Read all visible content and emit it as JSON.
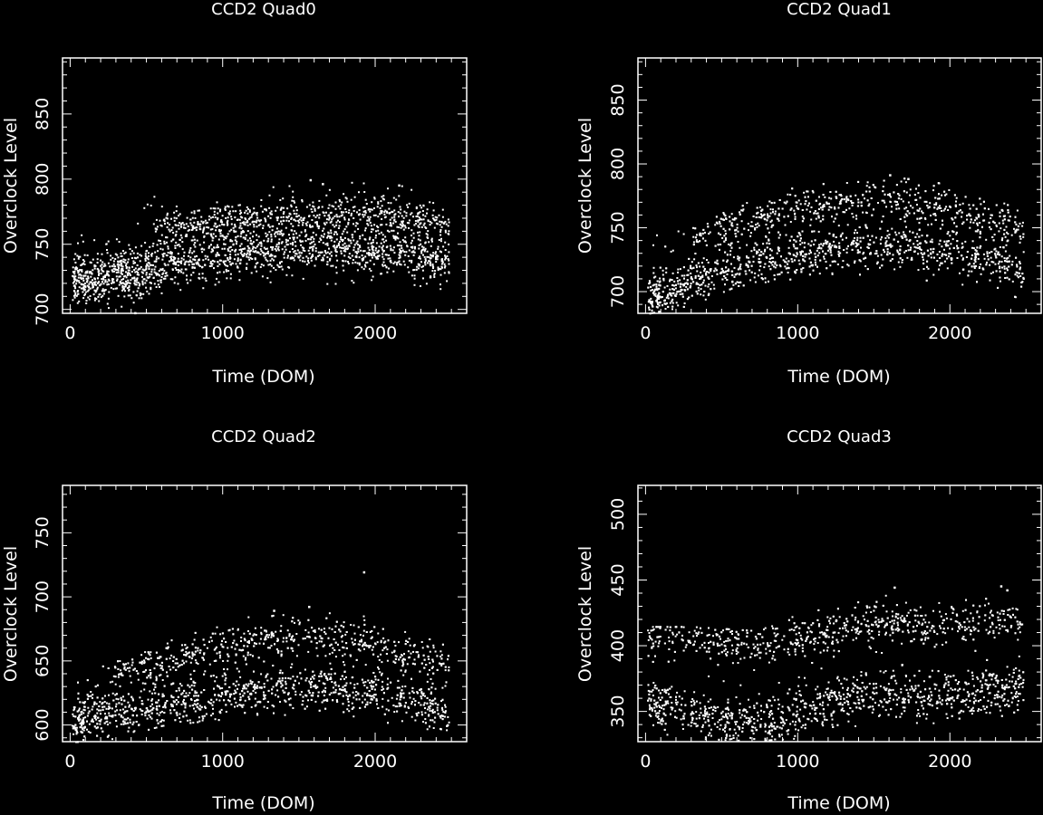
{
  "colors": {
    "background": "#000000",
    "foreground": "#ffffff"
  },
  "chart_data": [
    {
      "type": "scatter",
      "title": "CCD2 Quad0",
      "xlabel": "Time (DOM)",
      "ylabel": "Overclock Level",
      "xlim": [
        -50,
        2600
      ],
      "ylim": [
        697,
        893
      ],
      "xticks": [
        0,
        1000,
        2000
      ],
      "yticks": [
        700,
        750,
        800,
        850
      ],
      "grid": false,
      "series": [
        {
          "trend": [
            [
              0,
              728
            ],
            [
              150,
              722
            ],
            [
              300,
              730
            ],
            [
              450,
              725
            ],
            [
              600,
              735
            ],
            [
              800,
              740
            ],
            [
              1000,
              743
            ],
            [
              1200,
              746
            ],
            [
              1400,
              747
            ],
            [
              1600,
              748
            ],
            [
              1800,
              748
            ],
            [
              2000,
              747
            ],
            [
              2200,
              745
            ],
            [
              2400,
              740
            ],
            [
              2480,
              738
            ]
          ],
          "upper_trend": [
            [
              550,
              760
            ],
            [
              800,
              765
            ],
            [
              1000,
              768
            ],
            [
              1200,
              770
            ],
            [
              1400,
              772
            ],
            [
              1600,
              772
            ],
            [
              1800,
              773
            ],
            [
              2000,
              773
            ],
            [
              2200,
              772
            ],
            [
              2400,
              768
            ],
            [
              2480,
              765
            ]
          ],
          "range": [
            [
              0,
              705,
              760
            ],
            [
              300,
              700,
              755
            ],
            [
              550,
              710,
              790
            ],
            [
              1000,
              720,
              790
            ],
            [
              1500,
              720,
              800
            ],
            [
              2000,
              720,
              800
            ],
            [
              2480,
              710,
              790
            ]
          ],
          "outliers": [
            [
              1570,
              800
            ],
            [
              1650,
              797
            ],
            [
              2150,
              796
            ],
            [
              420,
              698
            ]
          ]
        }
      ]
    },
    {
      "type": "scatter",
      "title": "CCD2 Quad1",
      "xlabel": "Time (DOM)",
      "ylabel": "Overclock Level",
      "xlim": [
        -50,
        2600
      ],
      "ylim": [
        683,
        883
      ],
      "xticks": [
        0,
        1000,
        2000
      ],
      "yticks": [
        700,
        750,
        800,
        850
      ],
      "grid": false,
      "series": [
        {
          "trend": [
            [
              0,
              695
            ],
            [
              150,
              700
            ],
            [
              300,
              710
            ],
            [
              500,
              715
            ],
            [
              700,
              722
            ],
            [
              900,
              728
            ],
            [
              1100,
              732
            ],
            [
              1300,
              735
            ],
            [
              1500,
              736
            ],
            [
              1700,
              736
            ],
            [
              1900,
              734
            ],
            [
              2100,
              732
            ],
            [
              2300,
              726
            ],
            [
              2480,
              720
            ]
          ],
          "upper_trend": [
            [
              300,
              740
            ],
            [
              500,
              750
            ],
            [
              700,
              758
            ],
            [
              900,
              765
            ],
            [
              1100,
              768
            ],
            [
              1300,
              770
            ],
            [
              1500,
              772
            ],
            [
              1700,
              771
            ],
            [
              1900,
              768
            ],
            [
              2100,
              765
            ],
            [
              2300,
              758
            ],
            [
              2480,
              750
            ]
          ],
          "range": [
            [
              0,
              683,
              745
            ],
            [
              300,
              690,
              750
            ],
            [
              600,
              705,
              770
            ],
            [
              1000,
              710,
              785
            ],
            [
              1500,
              710,
              790
            ],
            [
              2000,
              705,
              788
            ],
            [
              2480,
              685,
              770
            ]
          ],
          "outliers": [
            [
              1600,
              792
            ],
            [
              1720,
              789
            ]
          ]
        }
      ]
    },
    {
      "type": "scatter",
      "title": "CCD2 Quad2",
      "xlabel": "Time (DOM)",
      "ylabel": "Overclock Level",
      "xlim": [
        -50,
        2600
      ],
      "ylim": [
        587,
        787
      ],
      "xticks": [
        0,
        1000,
        2000
      ],
      "yticks": [
        600,
        650,
        700,
        750
      ],
      "grid": false,
      "series": [
        {
          "trend": [
            [
              0,
              600
            ],
            [
              150,
              608
            ],
            [
              300,
              612
            ],
            [
              450,
              608
            ],
            [
              600,
              615
            ],
            [
              800,
              618
            ],
            [
              1000,
              625
            ],
            [
              1200,
              628
            ],
            [
              1400,
              630
            ],
            [
              1600,
              630
            ],
            [
              1800,
              628
            ],
            [
              2000,
              627
            ],
            [
              2200,
              625
            ],
            [
              2400,
              615
            ],
            [
              2480,
              612
            ]
          ],
          "upper_trend": [
            [
              250,
              640
            ],
            [
              500,
              645
            ],
            [
              700,
              655
            ],
            [
              900,
              660
            ],
            [
              1100,
              665
            ],
            [
              1300,
              668
            ],
            [
              1500,
              670
            ],
            [
              1700,
              668
            ],
            [
              1900,
              665
            ],
            [
              2100,
              662
            ],
            [
              2300,
              655
            ],
            [
              2480,
              650
            ]
          ],
          "range": [
            [
              0,
              587,
              640
            ],
            [
              300,
              590,
              650
            ],
            [
              600,
              600,
              670
            ],
            [
              1000,
              605,
              685
            ],
            [
              1500,
              605,
              690
            ],
            [
              2000,
              600,
              688
            ],
            [
              2480,
              587,
              670
            ]
          ],
          "outliers": [
            [
              1920,
              720
            ],
            [
              1330,
              690
            ],
            [
              1560,
              693
            ]
          ]
        }
      ]
    },
    {
      "type": "scatter",
      "title": "CCD2 Quad3",
      "xlabel": "Time (DOM)",
      "ylabel": "Overclock Level",
      "xlim": [
        -50,
        2600
      ],
      "ylim": [
        327,
        522
      ],
      "xticks": [
        0,
        1000,
        2000
      ],
      "yticks": [
        350,
        400,
        450,
        500
      ],
      "grid": false,
      "series": [
        {
          "trend": [
            [
              0,
              360
            ],
            [
              150,
              355
            ],
            [
              300,
              350
            ],
            [
              500,
              345
            ],
            [
              700,
              342
            ],
            [
              900,
              345
            ],
            [
              1100,
              355
            ],
            [
              1300,
              362
            ],
            [
              1500,
              365
            ],
            [
              1700,
              362
            ],
            [
              1900,
              362
            ],
            [
              2100,
              365
            ],
            [
              2300,
              368
            ],
            [
              2480,
              368
            ]
          ],
          "upper_trend": [
            [
              0,
              410
            ],
            [
              300,
              405
            ],
            [
              600,
              402
            ],
            [
              900,
              403
            ],
            [
              1100,
              408
            ],
            [
              1300,
              415
            ],
            [
              1500,
              420
            ],
            [
              1700,
              418
            ],
            [
              1900,
              415
            ],
            [
              2100,
              418
            ],
            [
              2300,
              420
            ],
            [
              2480,
              415
            ]
          ],
          "range": [
            [
              0,
              335,
              415
            ],
            [
              300,
              330,
              415
            ],
            [
              700,
              328,
              412
            ],
            [
              1000,
              330,
              425
            ],
            [
              1500,
              335,
              440
            ],
            [
              2000,
              335,
              440
            ],
            [
              2480,
              335,
              440
            ]
          ],
          "outliers": [
            [
              1630,
              445
            ],
            [
              2330,
              446
            ],
            [
              2370,
              443
            ]
          ]
        }
      ]
    }
  ]
}
